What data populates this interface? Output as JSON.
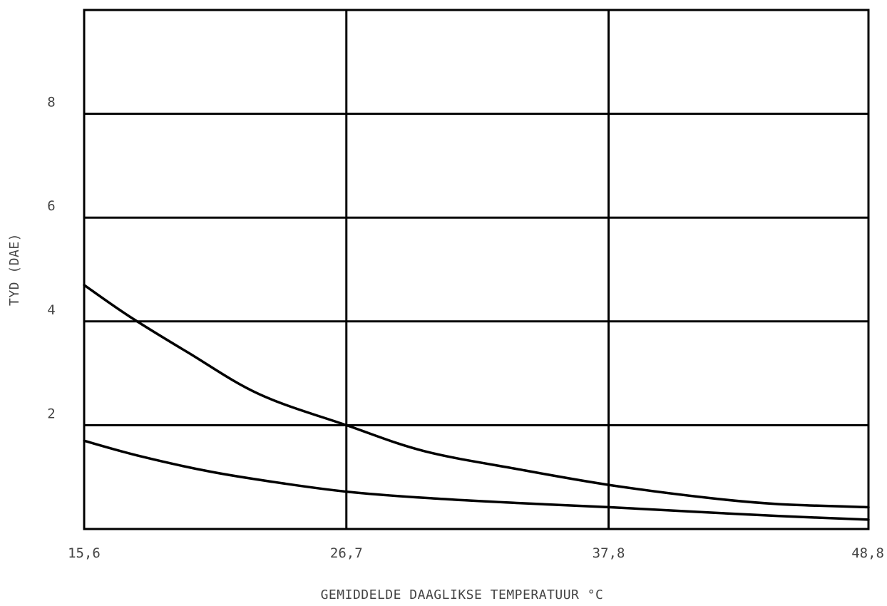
{
  "chart_data": {
    "type": "line",
    "title": "",
    "xlabel": "GEMIDDELDE DAAGLIKSE TEMPERATUUR °C",
    "ylabel": "TYD (DAE)",
    "x_ticks": [
      "15,6",
      "26,7",
      "37,8",
      "48,8"
    ],
    "y_ticks": [
      "2",
      "4",
      "6",
      "8"
    ],
    "xlim": [
      15.6,
      48.8
    ],
    "ylim": [
      0,
      10
    ],
    "grid": true,
    "legend": "none",
    "series": [
      {
        "x": [
          15.6,
          17.5,
          20,
          23,
          26.7,
          30,
          34,
          37.8,
          42,
          45,
          48.8
        ],
        "y": [
          4.7,
          4.1,
          3.4,
          2.6,
          2.0,
          1.5,
          1.15,
          0.85,
          0.6,
          0.48,
          0.42
        ]
      },
      {
        "x": [
          15.6,
          18,
          21,
          24,
          26.7,
          30,
          34,
          37.8,
          42,
          45,
          48.8
        ],
        "y": [
          1.7,
          1.4,
          1.1,
          0.88,
          0.72,
          0.6,
          0.5,
          0.42,
          0.32,
          0.25,
          0.18
        ]
      }
    ]
  }
}
